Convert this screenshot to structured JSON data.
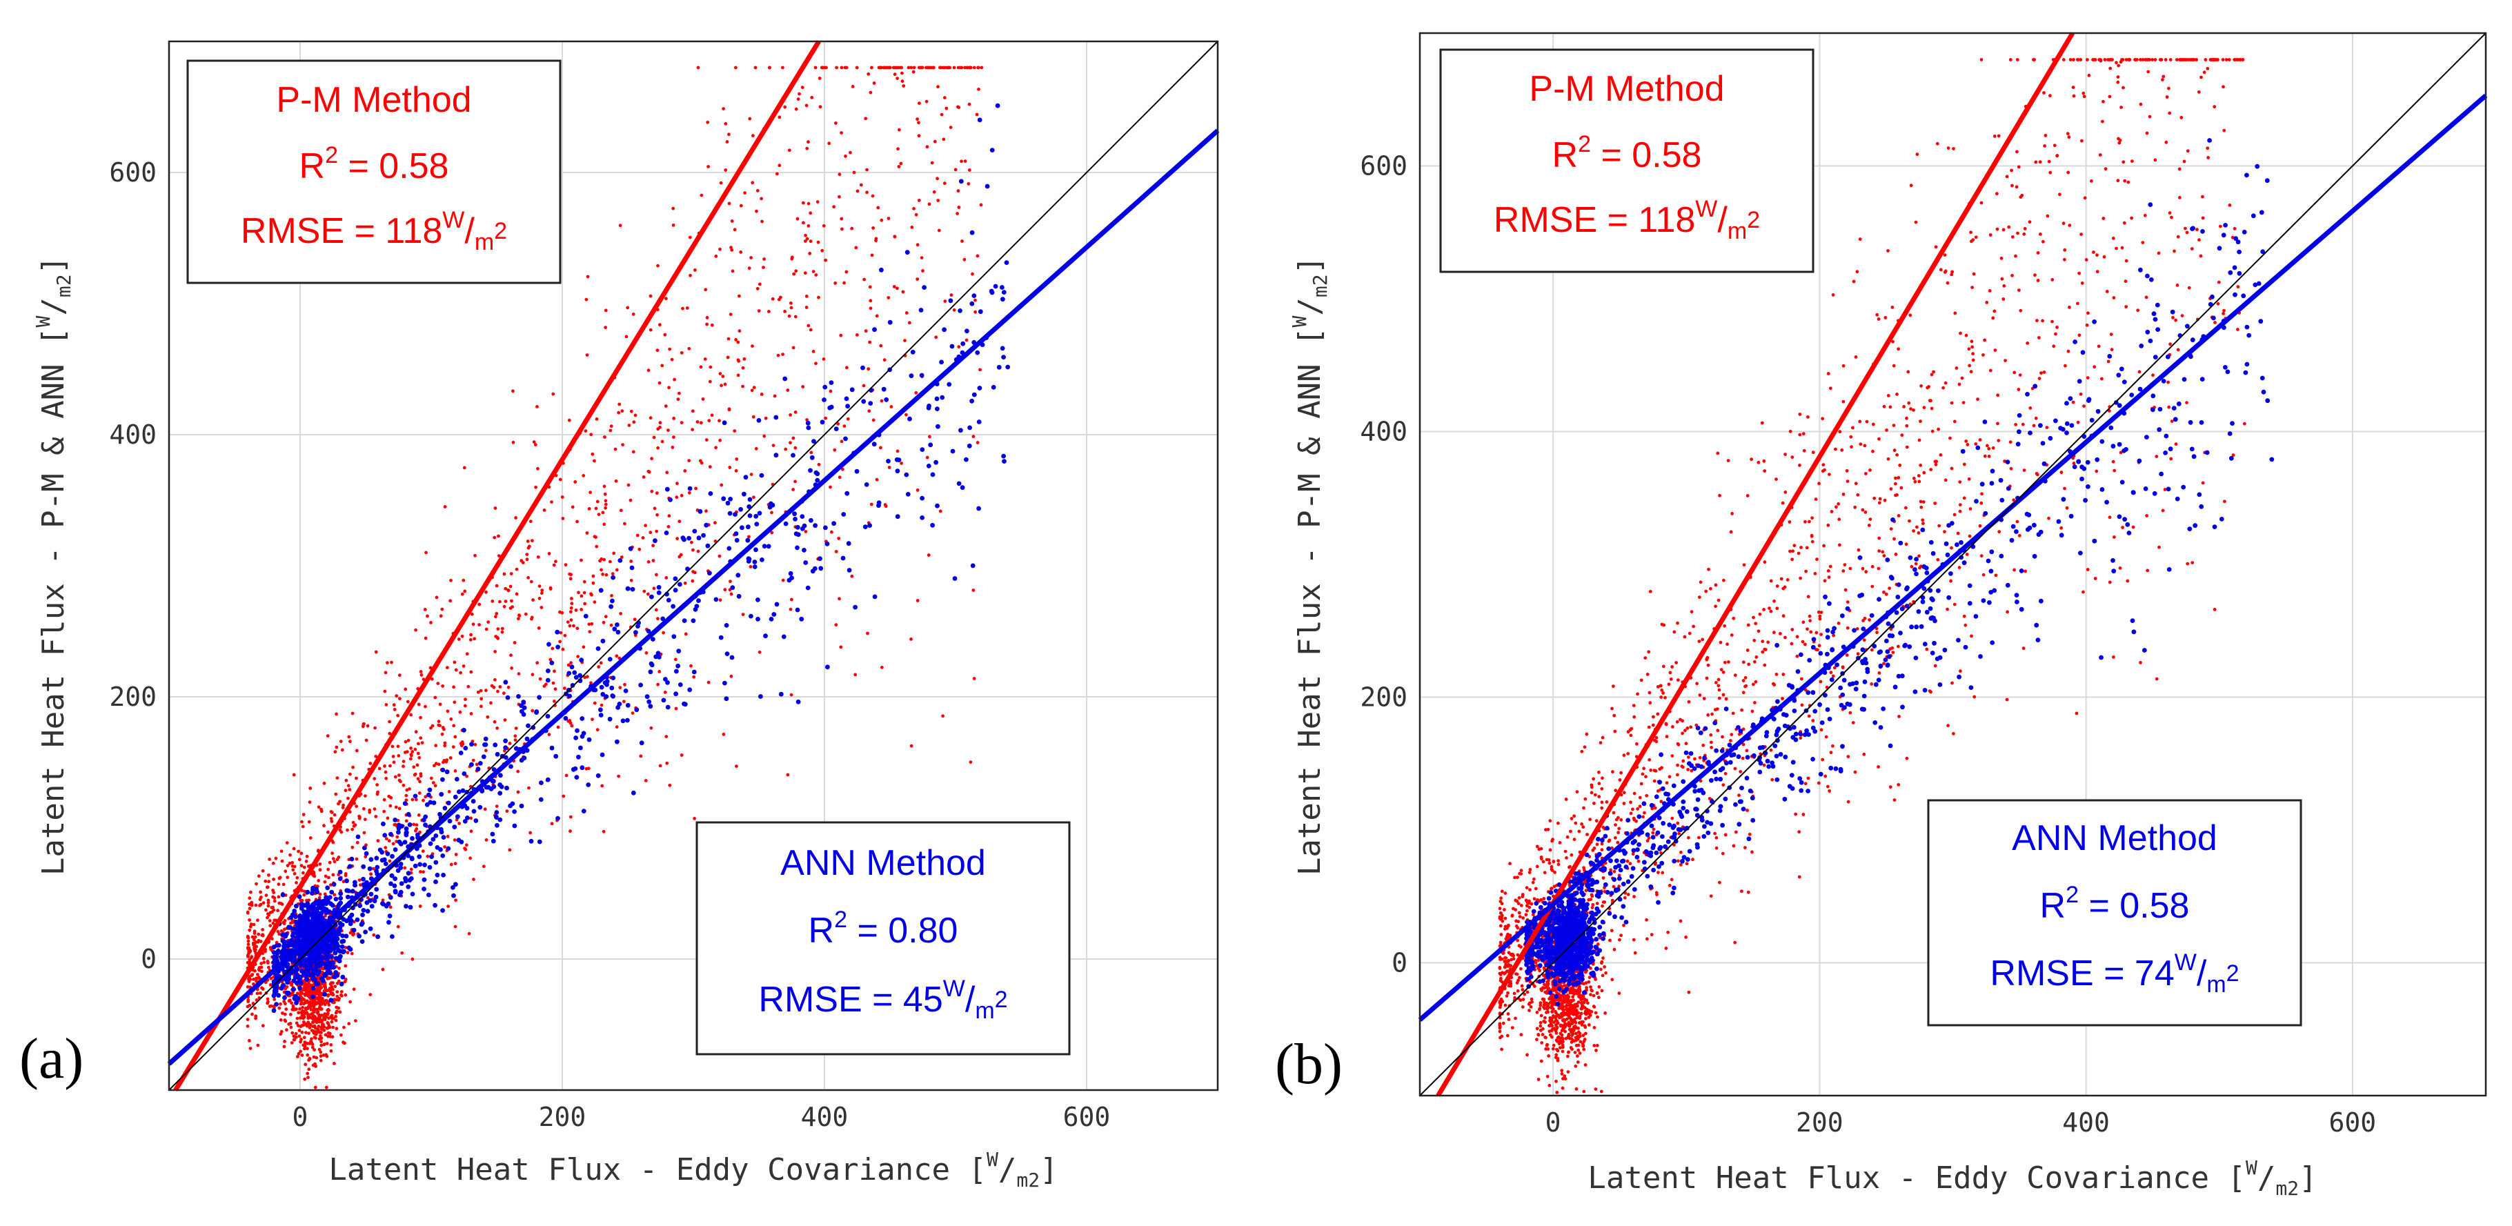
{
  "colors": {
    "pm": "#ff0000",
    "ann": "#0000e6",
    "one_to_one": "#000000"
  },
  "chart_data": [
    {
      "type": "scatter",
      "panel_label": "(a)",
      "xlabel": "Latent Heat Flux - Eddy Covariance [",
      "ylabel": "Latent Heat Flux - P-M & ANN [",
      "unit_numerator": "W",
      "unit_slash": "/",
      "unit_denominator": "m",
      "unit_exponent": "2",
      "unit_close": "]",
      "xlim": [
        -100,
        700
      ],
      "ylim": [
        -100,
        700
      ],
      "xticks": [
        0,
        200,
        400,
        600
      ],
      "yticks": [
        0,
        200,
        400,
        600
      ],
      "grid": true,
      "series": [
        {
          "name": "P-M Method",
          "color": "#ff0000",
          "fit_slope": 1.63,
          "fit_intercept": 55
        },
        {
          "name": "ANN Method",
          "color": "#0000e6",
          "fit_slope": 0.89,
          "fit_intercept": 9
        },
        {
          "name": "1:1 line",
          "color": "#000000",
          "fit_slope": 1.0,
          "fit_intercept": 0
        }
      ],
      "annotations": {
        "pm": {
          "title": "P-M Method",
          "r2_prefix": "R",
          "r2_exp": "2",
          "r2_value": " = 0.58",
          "rmse_prefix": "RMSE = 118",
          "unit_num": "W",
          "unit_slash": "/",
          "unit_den": "m",
          "unit_exp": "2"
        },
        "ann": {
          "title": "ANN Method",
          "r2_prefix": "R",
          "r2_exp": "2",
          "r2_value": " = 0.80",
          "rmse_prefix": "RMSE = 45",
          "unit_num": "W",
          "unit_slash": "/",
          "unit_den": "m",
          "unit_exp": "2"
        }
      }
    },
    {
      "type": "scatter",
      "panel_label": "(b)",
      "xlabel": "Latent Heat Flux - Eddy Covariance [",
      "ylabel": "Latent Heat Flux - P-M & ANN [",
      "unit_numerator": "W",
      "unit_slash": "/",
      "unit_denominator": "m",
      "unit_exponent": "2",
      "unit_close": "]",
      "xlim": [
        -100,
        700
      ],
      "ylim": [
        -100,
        700
      ],
      "xticks": [
        0,
        200,
        400,
        600
      ],
      "yticks": [
        0,
        200,
        400,
        600
      ],
      "grid": true,
      "series": [
        {
          "name": "P-M Method",
          "color": "#ff0000",
          "fit_slope": 1.68,
          "fit_intercept": 45
        },
        {
          "name": "ANN Method",
          "color": "#0000e6",
          "fit_slope": 0.87,
          "fit_intercept": 44
        },
        {
          "name": "1:1 line",
          "color": "#000000",
          "fit_slope": 1.0,
          "fit_intercept": 0
        }
      ],
      "annotations": {
        "pm": {
          "title": "P-M Method",
          "r2_prefix": "R",
          "r2_exp": "2",
          "r2_value": " = 0.58",
          "rmse_prefix": "RMSE = 118",
          "unit_num": "W",
          "unit_slash": "/",
          "unit_den": "m",
          "unit_exp": "2"
        },
        "ann": {
          "title": "ANN Method",
          "r2_prefix": "R",
          "r2_exp": "2",
          "r2_value": " = 0.58",
          "rmse_prefix": "RMSE = 74",
          "unit_num": "W",
          "unit_slash": "/",
          "unit_den": "m",
          "unit_exp": "2"
        }
      }
    }
  ]
}
